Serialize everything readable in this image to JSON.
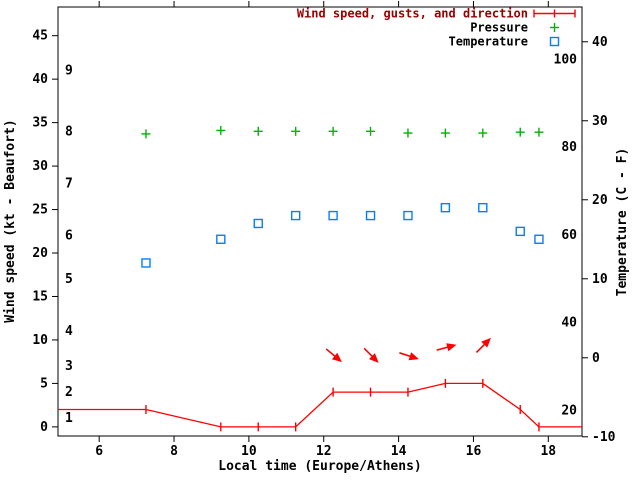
{
  "figure": {
    "background": "#ffffff",
    "border_color": "#000000",
    "text_color": "#000000",
    "legend": {
      "position": "top-right-inside",
      "items": [
        {
          "label": "Wind speed, gusts, and direction",
          "series": "wind",
          "marker": "errorbar-line",
          "color": "#ff0000",
          "label_color": "#990000"
        },
        {
          "label": "Pressure",
          "series": "pressure",
          "marker": "plus",
          "color": "#00b400",
          "label_color": "#000000"
        },
        {
          "label": "Temperature",
          "series": "temperature",
          "marker": "open-square",
          "color": "#0080ff",
          "label_color": "#000000"
        }
      ]
    }
  },
  "chart_data": {
    "type": "line",
    "title": "",
    "xlabel": "Local time (Europe/Athens)",
    "ylabel_left": "Wind speed (kt - Beaufort)",
    "ylabel_right": "Temperature (C - F)",
    "xlim": [
      4.9,
      18.9
    ],
    "x_ticks": [
      6,
      8,
      10,
      12,
      14,
      16,
      18
    ],
    "left_axis": {
      "unit": "kt",
      "lim": [
        -1.05,
        48.3
      ],
      "ticks": [
        0,
        5,
        10,
        15,
        20,
        25,
        30,
        35,
        40,
        45
      ]
    },
    "beaufort_scale": [
      {
        "bft": "1",
        "kt": 1
      },
      {
        "bft": "2",
        "kt": 4
      },
      {
        "bft": "3",
        "kt": 7
      },
      {
        "bft": "4",
        "kt": 11
      },
      {
        "bft": "5",
        "kt": 17
      },
      {
        "bft": "6",
        "kt": 22
      },
      {
        "bft": "7",
        "kt": 28
      },
      {
        "bft": "8",
        "kt": 34
      },
      {
        "bft": "9",
        "kt": 41
      }
    ],
    "right_axis": {
      "unit": "C",
      "lim": [
        -9.9,
        44.4
      ],
      "ticks": [
        -10,
        0,
        10,
        20,
        30,
        40
      ]
    },
    "fahrenheit_labels": [
      20,
      40,
      60,
      80,
      100
    ],
    "observation_times": [
      7.25,
      9.25,
      10.25,
      11.25,
      12.25,
      13.25,
      14.25,
      15.25,
      16.25,
      17.25,
      17.75
    ],
    "series": [
      {
        "name": "Wind speed, gusts, and direction",
        "axis": "left",
        "unit": "kt",
        "color": "#ff0000",
        "line_x": [
          4.9,
          7.25,
          9.25,
          10.25,
          11.25,
          12.25,
          13.25,
          14.25,
          15.25,
          16.25,
          17.25,
          17.75,
          18.9
        ],
        "line_y": [
          2,
          2,
          0,
          0,
          0,
          4,
          4,
          4,
          5,
          5,
          2,
          0,
          0
        ],
        "marker_x": [
          7.25,
          9.25,
          10.25,
          11.25,
          12.25,
          13.25,
          14.25,
          15.25,
          16.25,
          17.25,
          17.75
        ],
        "marker_y": [
          2,
          0,
          0,
          0,
          4,
          4,
          4,
          5,
          5,
          2,
          0
        ]
      },
      {
        "name": "Pressure",
        "axis": "left",
        "unit": "plotted against left kt axis",
        "color": "#00b400",
        "x": [
          7.25,
          9.25,
          10.25,
          11.25,
          12.25,
          13.25,
          14.25,
          15.25,
          16.25,
          17.25,
          17.75
        ],
        "y": [
          33.7,
          34.1,
          34.0,
          34.0,
          34.0,
          34.0,
          33.8,
          33.8,
          33.8,
          33.9,
          33.9
        ]
      },
      {
        "name": "Temperature",
        "axis": "right",
        "unit": "C",
        "color": "#0080ff",
        "x": [
          7.25,
          9.25,
          10.25,
          11.25,
          12.25,
          13.25,
          14.25,
          15.25,
          16.25,
          17.25,
          17.75
        ],
        "y": [
          12,
          15,
          17,
          18,
          18,
          18,
          18,
          19,
          19,
          16,
          15
        ]
      }
    ],
    "wind_direction_arrows": {
      "color": "#ff0000",
      "x": [
        12.25,
        13.25,
        14.25,
        15.25,
        16.25
      ],
      "y_kt": [
        8.3,
        8.3,
        8.2,
        9.1,
        9.3
      ],
      "angle_deg_screen": [
        40,
        45,
        18,
        -15,
        -45
      ]
    },
    "grid": false,
    "tick_direction": "out",
    "legend_position": "top-right-inside"
  }
}
